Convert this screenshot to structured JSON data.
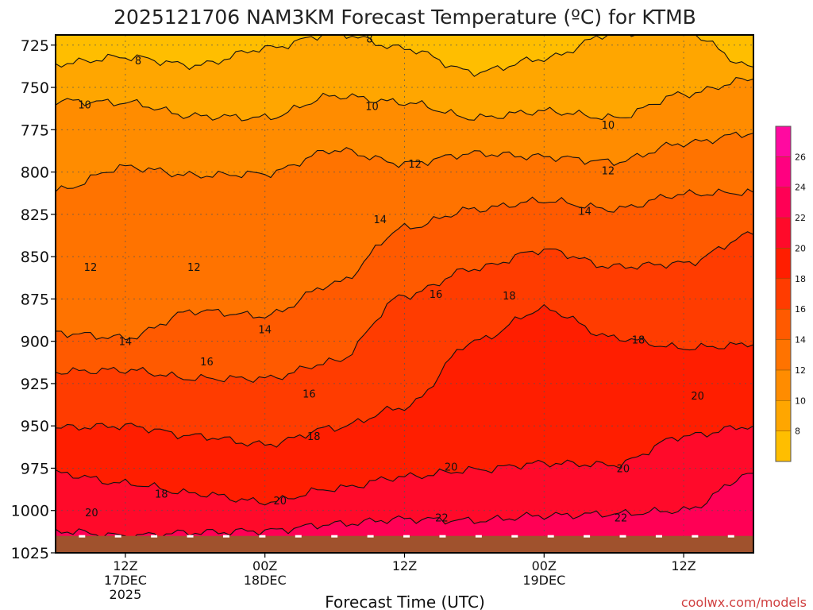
{
  "chart_data": {
    "type": "area",
    "title": "2025121706 NAM3KM Forecast Temperature (ºC) for KTMB",
    "xlabel": "Forecast Time (UTC)",
    "ylabel": "",
    "watermark": "coolwx.com/models",
    "y_axis": {
      "ticks": [
        "725",
        "750",
        "775",
        "800",
        "825",
        "850",
        "875",
        "900",
        "925",
        "950",
        "975",
        "1000",
        "1025"
      ],
      "range_hpa": [
        1025,
        719
      ]
    },
    "x_axis": {
      "ticks": [
        {
          "hour": 6,
          "line1": "12Z",
          "line2": "17DEC",
          "line3": "2025"
        },
        {
          "hour": 18,
          "line1": "00Z",
          "line2": "18DEC",
          "line3": ""
        },
        {
          "hour": 30,
          "line1": "12Z",
          "line2": "",
          "line3": ""
        },
        {
          "hour": 42,
          "line1": "00Z",
          "line2": "19DEC",
          "line3": ""
        },
        {
          "hour": 54,
          "line1": "12Z",
          "line2": "",
          "line3": ""
        }
      ],
      "range_hours": [
        0,
        60
      ]
    },
    "surface_pressure_hpa": 1015,
    "colorbar": {
      "labels": [
        "8",
        "10",
        "12",
        "14",
        "16",
        "18",
        "20",
        "22",
        "24",
        "26"
      ],
      "bins": [
        {
          "lo": 6,
          "hi": 8,
          "color": "#ffbe00"
        },
        {
          "lo": 8,
          "hi": 10,
          "color": "#ffa600"
        },
        {
          "lo": 10,
          "hi": 12,
          "color": "#ff8c00"
        },
        {
          "lo": 12,
          "hi": 14,
          "color": "#ff7300"
        },
        {
          "lo": 14,
          "hi": 16,
          "color": "#ff5a00"
        },
        {
          "lo": 16,
          "hi": 18,
          "color": "#ff3c00"
        },
        {
          "lo": 18,
          "hi": 20,
          "color": "#ff1e00"
        },
        {
          "lo": 20,
          "hi": 22,
          "color": "#ff0a2a"
        },
        {
          "lo": 22,
          "hi": 24,
          "color": "#ff0055"
        },
        {
          "lo": 24,
          "hi": 26,
          "color": "#ff0080"
        },
        {
          "lo": 26,
          "hi": 28,
          "color": "#ff0aa0"
        }
      ]
    },
    "contour_levels": [
      8,
      10,
      12,
      14,
      16,
      18,
      20,
      22
    ],
    "isotherms": [
      {
        "level": 8,
        "hours": [
          0,
          6,
          12,
          18,
          24,
          30,
          36,
          42,
          48,
          54,
          60
        ],
        "pressure_hpa": [
          736,
          732,
          737,
          727,
          718,
          727,
          741,
          733,
          718,
          717,
          738
        ]
      },
      {
        "level": 10,
        "hours": [
          0,
          6,
          12,
          18,
          24,
          30,
          36,
          42,
          48,
          54,
          60
        ],
        "pressure_hpa": [
          758,
          759,
          767,
          768,
          755,
          759,
          768,
          764,
          768,
          754,
          745
        ]
      },
      {
        "level": 12,
        "hours": [
          0,
          6,
          12,
          18,
          24,
          30,
          36,
          42,
          48,
          54,
          60
        ],
        "pressure_hpa": [
          811,
          797,
          802,
          801,
          787,
          795,
          789,
          791,
          794,
          783,
          777
        ]
      },
      {
        "level": 14,
        "hours": [
          0,
          6,
          12,
          18,
          24,
          30,
          36,
          42,
          48,
          54,
          60
        ],
        "pressure_hpa": [
          895,
          898,
          882,
          885,
          866,
          833,
          822,
          817,
          822,
          813,
          812
        ]
      },
      {
        "level": 16,
        "hours": [
          0,
          6,
          12,
          18,
          24,
          30,
          36,
          42,
          48,
          54,
          60
        ],
        "pressure_hpa": [
          918,
          917,
          922,
          922,
          912,
          873,
          857,
          846,
          856,
          854,
          837
        ]
      },
      {
        "level": 18,
        "hours": [
          0,
          6,
          12,
          18,
          24,
          30,
          36,
          42,
          48,
          54,
          60
        ],
        "pressure_hpa": [
          951,
          950,
          956,
          961,
          951,
          939,
          900,
          881,
          898,
          904,
          902
        ]
      },
      {
        "level": 20,
        "hours": [
          0,
          6,
          12,
          18,
          24,
          30,
          36,
          42,
          48,
          54,
          60
        ],
        "pressure_hpa": [
          978,
          984,
          990,
          995,
          987,
          980,
          976,
          972,
          973,
          956,
          950
        ]
      },
      {
        "level": 22,
        "hours": [
          0,
          6,
          12,
          18,
          24,
          30,
          36,
          42,
          48,
          54,
          60
        ],
        "pressure_hpa": [
          1012,
          1015,
          1013,
          1012,
          1008,
          1005,
          1006,
          1003,
          1002,
          1000,
          978
        ]
      }
    ],
    "contour_labels": [
      {
        "text": "8",
        "hour": 7.1,
        "pressure_hpa": 734
      },
      {
        "text": "8",
        "hour": 27.0,
        "pressure_hpa": 721
      },
      {
        "text": "10",
        "hour": 2.5,
        "pressure_hpa": 760
      },
      {
        "text": "10",
        "hour": 27.2,
        "pressure_hpa": 761
      },
      {
        "text": "10",
        "hour": 47.5,
        "pressure_hpa": 772
      },
      {
        "text": "12",
        "hour": 30.9,
        "pressure_hpa": 795
      },
      {
        "text": "12",
        "hour": 47.5,
        "pressure_hpa": 799
      },
      {
        "text": "12",
        "hour": 3.0,
        "pressure_hpa": 856
      },
      {
        "text": "12",
        "hour": 11.9,
        "pressure_hpa": 856
      },
      {
        "text": "14",
        "hour": 27.9,
        "pressure_hpa": 828
      },
      {
        "text": "14",
        "hour": 45.5,
        "pressure_hpa": 823
      },
      {
        "text": "14",
        "hour": 6.0,
        "pressure_hpa": 900
      },
      {
        "text": "14",
        "hour": 18.0,
        "pressure_hpa": 893
      },
      {
        "text": "16",
        "hour": 32.7,
        "pressure_hpa": 872
      },
      {
        "text": "16",
        "hour": 13.0,
        "pressure_hpa": 912
      },
      {
        "text": "16",
        "hour": 21.8,
        "pressure_hpa": 931
      },
      {
        "text": "18",
        "hour": 39.0,
        "pressure_hpa": 873
      },
      {
        "text": "18",
        "hour": 50.1,
        "pressure_hpa": 899
      },
      {
        "text": "18",
        "hour": 22.2,
        "pressure_hpa": 956
      },
      {
        "text": "18",
        "hour": 9.1,
        "pressure_hpa": 990
      },
      {
        "text": "20",
        "hour": 34.0,
        "pressure_hpa": 974
      },
      {
        "text": "20",
        "hour": 48.8,
        "pressure_hpa": 975
      },
      {
        "text": "20",
        "hour": 55.2,
        "pressure_hpa": 932
      },
      {
        "text": "20",
        "hour": 19.3,
        "pressure_hpa": 994
      },
      {
        "text": "20",
        "hour": 3.1,
        "pressure_hpa": 1001
      },
      {
        "text": "22",
        "hour": 33.2,
        "pressure_hpa": 1004
      },
      {
        "text": "22",
        "hour": 48.6,
        "pressure_hpa": 1004
      }
    ]
  }
}
